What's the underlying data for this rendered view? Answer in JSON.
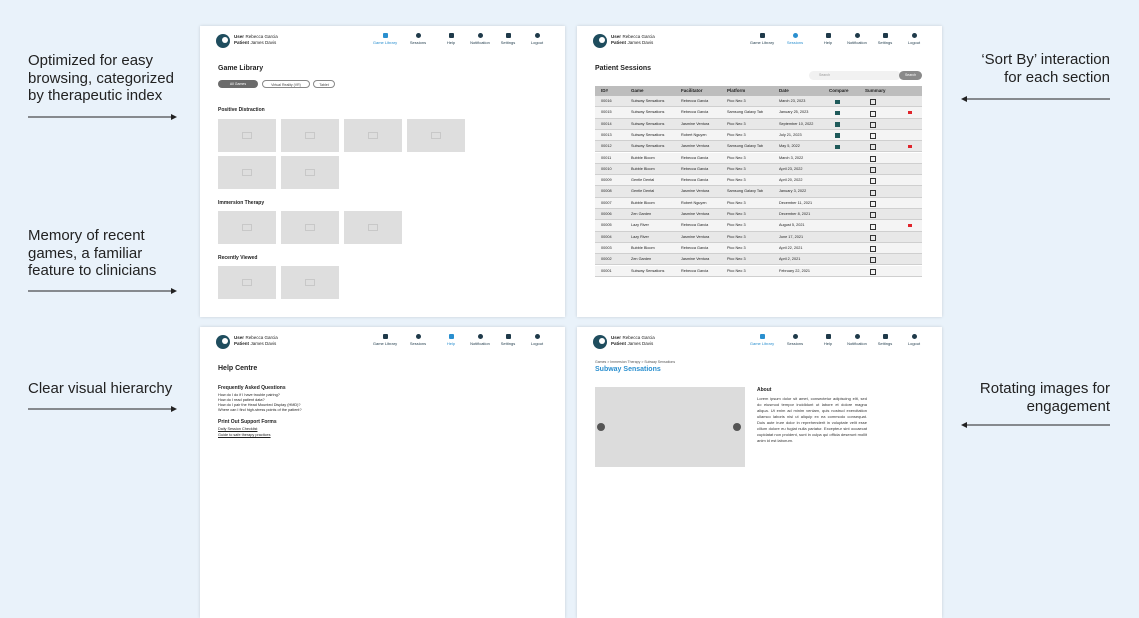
{
  "annotations": {
    "left": [
      "Optimized for easy browsing, categorized by therapeutic index",
      "Memory of recent games, a familiar feature to clinicians",
      "Clear visual hierarchy"
    ],
    "right": [
      "‘Sort By’ interaction for each section",
      "Rotating images for engagement"
    ]
  },
  "header": {
    "user_label": "User",
    "user": "Rebecca Garcia",
    "patient_label": "Patient",
    "patient": "James Davis",
    "nav": [
      "Game Library",
      "Sessions",
      "Help",
      "Notification",
      "Settings",
      "Logout"
    ]
  },
  "game_library": {
    "title": "Game Library",
    "filters": [
      "All Games",
      "Virtual Reality (VR)",
      "Tablet"
    ],
    "sections": [
      "Positive Distraction",
      "Immersion Therapy",
      "Recently Viewed"
    ]
  },
  "sessions": {
    "title": "Patient Sessions",
    "search_placeholder": "Search",
    "search_button": "Search",
    "columns": [
      "ID#",
      "Game",
      "Facilitator",
      "Platform",
      "Date",
      "Compare",
      "Summary"
    ],
    "rows": [
      {
        "cells": [
          "00016",
          "Subway Sensations",
          "Rebecca Garcia",
          "Pico Neo 3",
          "March 23, 2023"
        ],
        "compare": true,
        "flagged": false
      },
      {
        "cells": [
          "00015",
          "Subway Sensations",
          "Rebecca Garcia",
          "Samsung Galaxy Tab",
          "January 25, 2023"
        ],
        "compare": true,
        "flagged": true
      },
      {
        "cells": [
          "00014",
          "Subway Sensations",
          "Jasmine Ventura",
          "Pico Neo 3",
          "September 10, 2022"
        ],
        "compare": true,
        "flagged": false
      },
      {
        "cells": [
          "00013",
          "Subway Sensations",
          "Robert Nguyen",
          "Pico Neo 3",
          "July 21, 2023"
        ],
        "compare": true,
        "flagged": false
      },
      {
        "cells": [
          "00012",
          "Subway Sensations",
          "Jasmine Ventura",
          "Samsung Galaxy Tab",
          "May 5, 2022"
        ],
        "compare": true,
        "flagged": true
      },
      {
        "cells": [
          "00011",
          "Bubble Bloom",
          "Rebecca Garcia",
          "Pico Neo 3",
          "March 3, 2022"
        ],
        "compare": false,
        "flagged": false
      },
      {
        "cells": [
          "00010",
          "Bubble Bloom",
          "Rebecca Garcia",
          "Pico Neo 3",
          "April 23, 2022"
        ],
        "compare": false,
        "flagged": false
      },
      {
        "cells": [
          "00009",
          "Gentle Dental",
          "Rebecca Garcia",
          "Pico Neo 3",
          "April 20, 2022"
        ],
        "compare": false,
        "flagged": false
      },
      {
        "cells": [
          "00008",
          "Gentle Dental",
          "Jasmine Ventura",
          "Samsung Galaxy Tab",
          "January 3, 2022"
        ],
        "compare": false,
        "flagged": false
      },
      {
        "cells": [
          "00007",
          "Bubble Bloom",
          "Robert Nguyen",
          "Pico Neo 3",
          "December 11, 2021"
        ],
        "compare": false,
        "flagged": false
      },
      {
        "cells": [
          "00006",
          "Zen Garden",
          "Jasmine Ventura",
          "Pico Neo 3",
          "December 8, 2021"
        ],
        "compare": false,
        "flagged": false
      },
      {
        "cells": [
          "00005",
          "Lazy River",
          "Rebecca Garcia",
          "Pico Neo 3",
          "August 5, 2021"
        ],
        "compare": false,
        "flagged": true
      },
      {
        "cells": [
          "00004",
          "Lazy River",
          "Jasmine Ventura",
          "Pico Neo 3",
          "June 17, 2021"
        ],
        "compare": false,
        "flagged": false
      },
      {
        "cells": [
          "00003",
          "Bubble Bloom",
          "Rebecca Garcia",
          "Pico Neo 3",
          "April 22, 2021"
        ],
        "compare": false,
        "flagged": false
      },
      {
        "cells": [
          "00002",
          "Zen Garden",
          "Jasmine Ventura",
          "Pico Neo 3",
          "April 2, 2021"
        ],
        "compare": false,
        "flagged": false
      },
      {
        "cells": [
          "00001",
          "Subway Sensations",
          "Rebecca Garcia",
          "Pico Neo 3",
          "February 22, 2021"
        ],
        "compare": false,
        "flagged": false
      }
    ]
  },
  "help": {
    "title": "Help Centre",
    "faq_title": "Frequently Asked Questions",
    "faq": [
      "How do I do if I have trouble pairing?",
      "How do I read patient data?",
      "How do I pair the Head Mounted Display (HMD)?",
      "Where can I find high-stress points of the patient?"
    ],
    "forms_title": "Print Out Support Forms",
    "forms": [
      "Daily Session Checklist",
      "Guide to safe therapy practices"
    ]
  },
  "game_detail": {
    "breadcrumb": "Games > Immersion Therapy > Subway Sensations",
    "title": "Subway Sensations",
    "about_title": "About",
    "about": "Lorem ipsum dolor sit amet, consectetur adipiscing elit, sed do eiusmod tempor incididunt ut labore et dolore magna aliqua. Ut enim ad minim veniam, quis nostrud exercitation ullamco laboris nisi ut aliquip ex ea commodo consequat. Duis aute irure dolor in reprehenderit in voluptate velit esse cillum dolore eu fugiat nulla pariatur. Excepteur sint occaecat cupidatat non proident, sunt in culpa qui officia deserunt mollit anim id est laborum."
  }
}
